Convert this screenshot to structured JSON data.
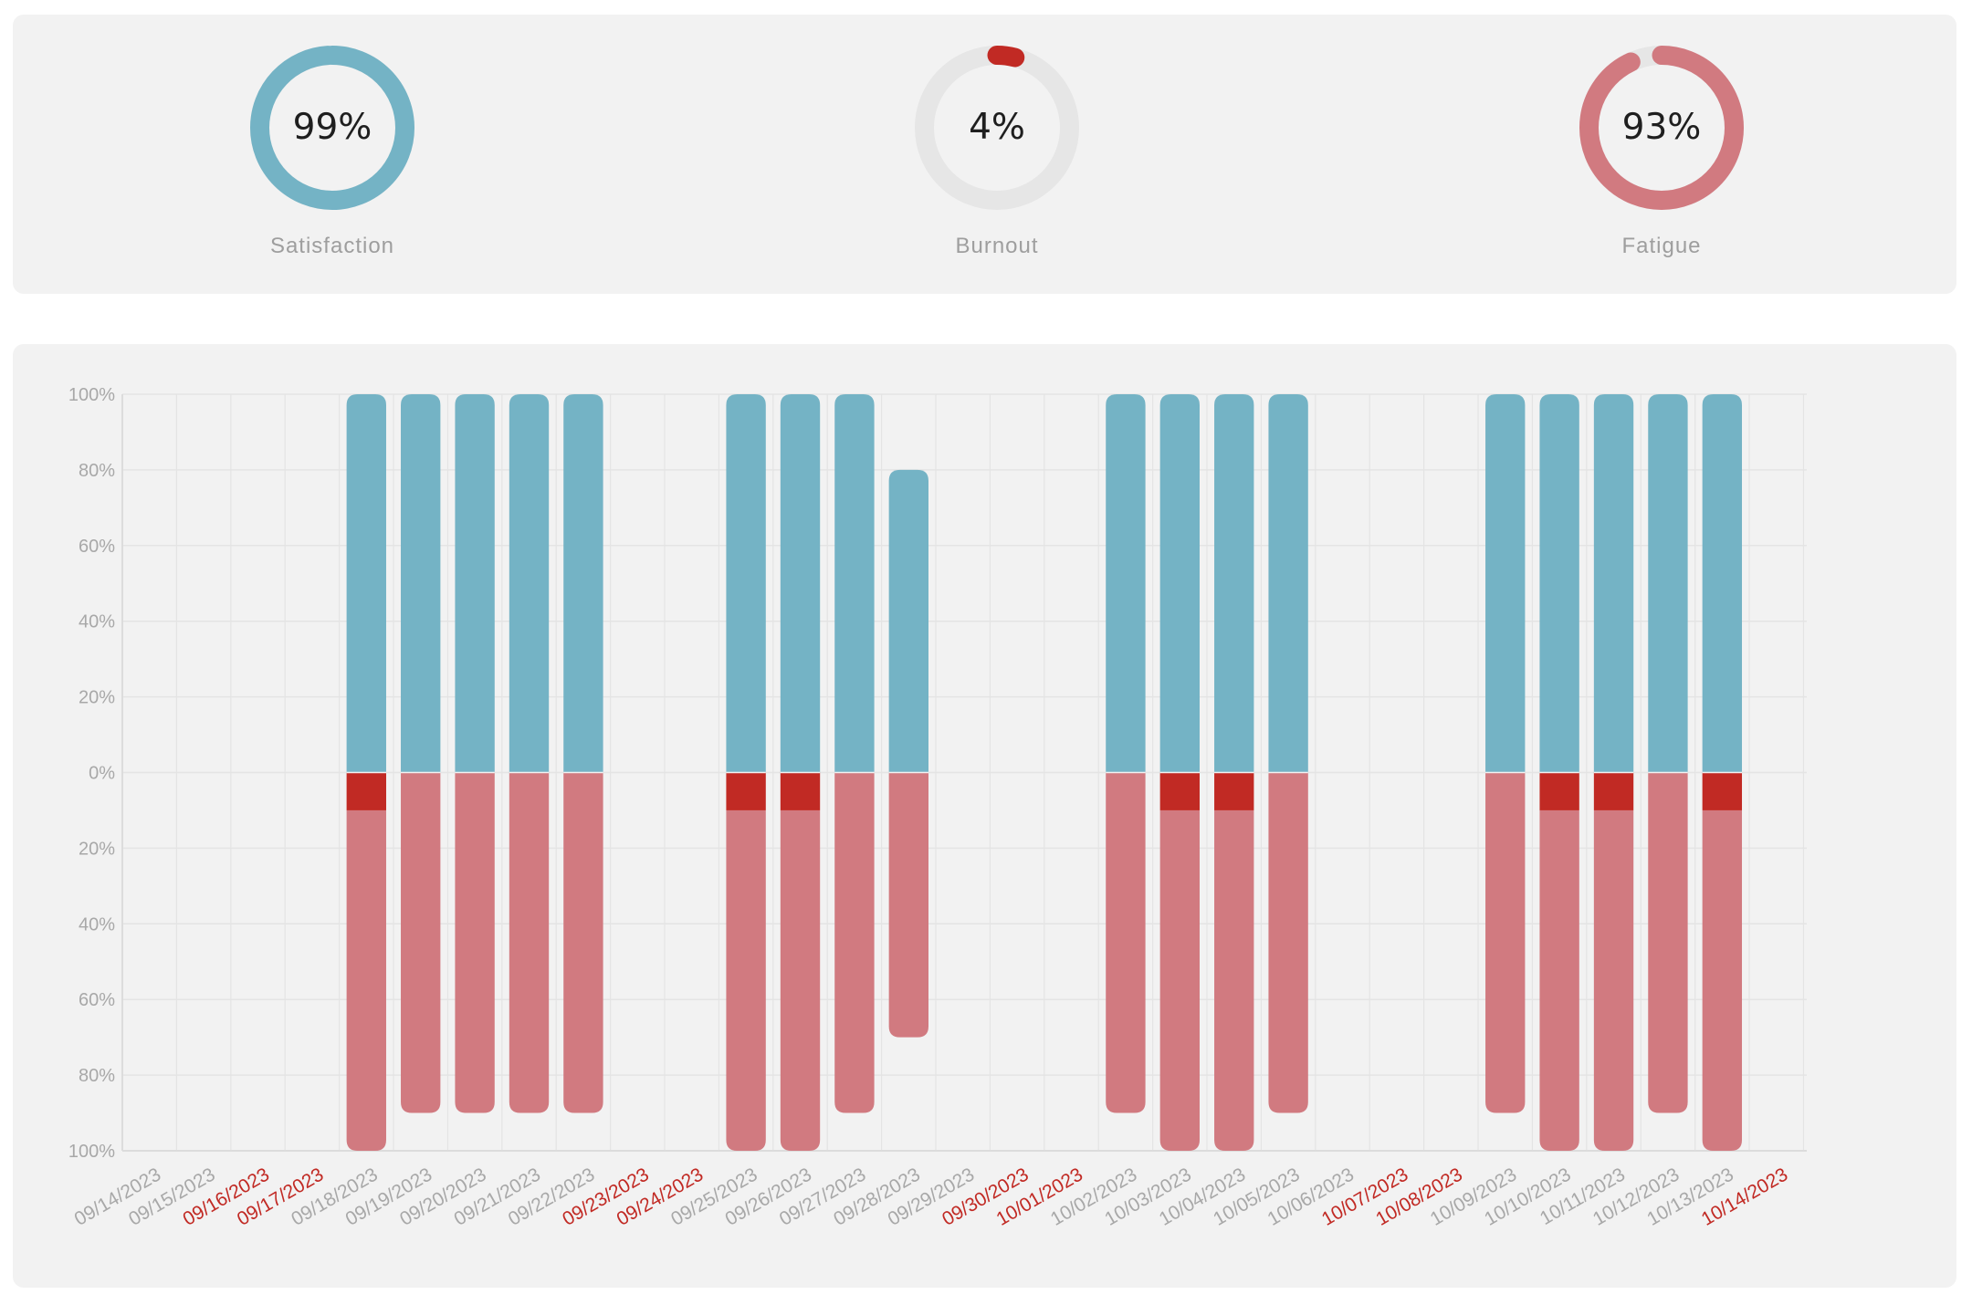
{
  "colors": {
    "satisfaction": "#74b3c5",
    "burnout": "#c12a24",
    "fatigue": "#d17a80",
    "gauge_track": "#e6e6e6",
    "weekday_label": "#a8a8a8",
    "weekend_label": "#c12a24"
  },
  "gauges": [
    {
      "id": "satisfaction",
      "value": 99,
      "display": "99%",
      "label": "Satisfaction",
      "color": "#74b3c5"
    },
    {
      "id": "burnout",
      "value": 4,
      "display": "4%",
      "label": "Burnout",
      "color": "#c12a24"
    },
    {
      "id": "fatigue",
      "value": 93,
      "display": "93%",
      "label": "Fatigue",
      "color": "#d17a80"
    }
  ],
  "chart_data": {
    "type": "bar",
    "title": "",
    "xlabel": "",
    "ylabel": "",
    "y_tick_labels": [
      "100%",
      "80%",
      "60%",
      "40%",
      "20%",
      "0%",
      "20%",
      "40%",
      "60%",
      "80%",
      "100%"
    ],
    "ylim": [
      -100,
      100
    ],
    "grid": true,
    "categories": [
      "09/14/2023",
      "09/15/2023",
      "09/16/2023",
      "09/17/2023",
      "09/18/2023",
      "09/19/2023",
      "09/20/2023",
      "09/21/2023",
      "09/22/2023",
      "09/23/2023",
      "09/24/2023",
      "09/25/2023",
      "09/26/2023",
      "09/27/2023",
      "09/28/2023",
      "09/29/2023",
      "09/30/2023",
      "10/01/2023",
      "10/02/2023",
      "10/03/2023",
      "10/04/2023",
      "10/05/2023",
      "10/06/2023",
      "10/07/2023",
      "10/08/2023",
      "10/09/2023",
      "10/10/2023",
      "10/11/2023",
      "10/12/2023",
      "10/13/2023",
      "10/14/2023"
    ],
    "weekend_categories": [
      "09/16/2023",
      "09/17/2023",
      "09/23/2023",
      "09/24/2023",
      "09/30/2023",
      "10/01/2023",
      "10/07/2023",
      "10/08/2023",
      "10/14/2023"
    ],
    "series": [
      {
        "key": "satisfaction",
        "color": "#74b3c5",
        "direction": "up",
        "values": [
          null,
          null,
          null,
          null,
          100,
          100,
          100,
          100,
          100,
          null,
          null,
          100,
          100,
          100,
          80,
          null,
          null,
          null,
          100,
          100,
          100,
          100,
          null,
          null,
          null,
          100,
          100,
          100,
          100,
          100,
          null
        ]
      },
      {
        "key": "burnout",
        "color": "#c12a24",
        "direction": "down",
        "values": [
          null,
          null,
          null,
          null,
          10,
          0,
          0,
          0,
          0,
          null,
          null,
          10,
          10,
          0,
          0,
          null,
          null,
          null,
          0,
          10,
          10,
          0,
          null,
          null,
          null,
          0,
          10,
          10,
          0,
          10,
          null
        ]
      },
      {
        "key": "fatigue",
        "color": "#d17a80",
        "direction": "down",
        "values": [
          null,
          null,
          null,
          null,
          90,
          90,
          90,
          90,
          90,
          null,
          null,
          90,
          90,
          90,
          70,
          null,
          null,
          null,
          90,
          90,
          90,
          90,
          null,
          null,
          null,
          90,
          90,
          90,
          90,
          90,
          null
        ]
      }
    ]
  }
}
